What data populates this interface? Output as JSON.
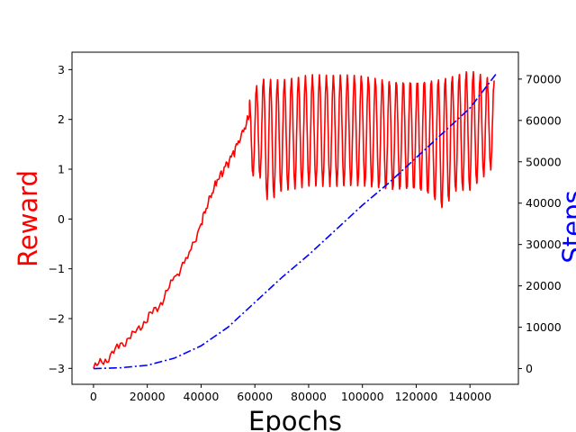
{
  "chart_data": {
    "type": "line",
    "title": "",
    "xlabel": "Epochs",
    "ylabel_left": "Reward",
    "ylabel_right": "Steps",
    "colors": {
      "left": "#ff0000",
      "right": "#0000ff"
    },
    "xlim": [
      -8000,
      158000
    ],
    "ylim_left": [
      -3.32,
      3.35
    ],
    "ylim_right": [
      -3800,
      76500
    ],
    "x_ticks": [
      0,
      20000,
      40000,
      60000,
      80000,
      100000,
      120000,
      140000
    ],
    "x_tick_labels": [
      "0",
      "20000",
      "40000",
      "60000",
      "80000",
      "100000",
      "120000",
      "140000"
    ],
    "y_left_ticks": [
      -3,
      -2,
      -1,
      0,
      1,
      2,
      3
    ],
    "y_left_tick_labels": [
      "−3",
      "−2",
      "−1",
      "0",
      "1",
      "2",
      "3"
    ],
    "y_right_ticks": [
      0,
      10000,
      20000,
      30000,
      40000,
      50000,
      60000,
      70000
    ],
    "y_right_tick_labels": [
      "0",
      "10000",
      "20000",
      "30000",
      "40000",
      "50000",
      "60000",
      "70000"
    ],
    "grid": false,
    "series": [
      {
        "axis": "left",
        "line_style": "solid",
        "x": [
          0,
          5000,
          10000,
          15000,
          20000,
          25000,
          30000,
          35000,
          40000,
          43000,
          46000,
          49000,
          52000,
          55000,
          58000
        ],
        "y": [
          -3.0,
          -2.8,
          -2.55,
          -2.3,
          -2.0,
          -1.7,
          -1.2,
          -0.75,
          -0.1,
          0.4,
          0.75,
          1.05,
          1.3,
          1.7,
          2.05
        ],
        "oscillation": {
          "x_start": 58000,
          "x_end": 149000,
          "period": 2600,
          "upper_x": [
            58000,
            62000,
            70000,
            80000,
            90000,
            100000,
            110000,
            120000,
            130000,
            140000,
            149000
          ],
          "upper_y": [
            2.35,
            2.8,
            2.75,
            2.85,
            2.85,
            2.85,
            2.75,
            2.75,
            2.8,
            2.95,
            2.75
          ],
          "lower_x": [
            58000,
            62000,
            65000,
            70000,
            80000,
            90000,
            100000,
            110000,
            120000,
            125000,
            130000,
            135000,
            140000,
            149000
          ],
          "lower_y": [
            0.9,
            0.85,
            0.35,
            0.6,
            0.7,
            0.7,
            0.7,
            0.6,
            0.6,
            0.5,
            0.2,
            0.6,
            0.6,
            1.1
          ]
        }
      },
      {
        "axis": "right",
        "line_style": "dashdot",
        "x": [
          0,
          10000,
          20000,
          30000,
          40000,
          50000,
          60000,
          70000,
          80000,
          90000,
          100000,
          110000,
          120000,
          130000,
          140000,
          150000
        ],
        "y": [
          0,
          200,
          800,
          2500,
          5500,
          10000,
          16000,
          22000,
          27500,
          33500,
          39500,
          45000,
          51000,
          57000,
          63000,
          71500
        ]
      }
    ]
  }
}
